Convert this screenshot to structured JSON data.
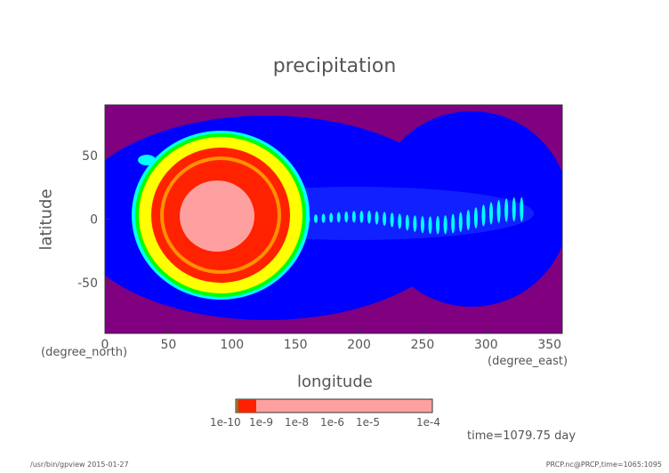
{
  "chart_data": {
    "type": "heatmap",
    "title": "precipitation",
    "xlabel": "longitude",
    "xunit": "(degree_east)",
    "ylabel": "latitude",
    "yunit": "(degree_north)",
    "xlim": [
      0,
      360
    ],
    "ylim": [
      -90,
      90
    ],
    "xticks": [
      0,
      50,
      100,
      150,
      200,
      250,
      300,
      350
    ],
    "yticks": [
      50,
      0,
      -50
    ],
    "description_levels": {
      "colorbar_labels": [
        "1e-10",
        "1e-9",
        "1e-8",
        "1e-6",
        "1e-5",
        "1e-4"
      ]
    },
    "colors": [
      "#800080",
      "#0000ff",
      "#00ffff",
      "#00ff00",
      "#ffff00",
      "#ff2200",
      "#ffa0a0"
    ],
    "time_label": "time=1079.75 day"
  },
  "footer": {
    "left": "/usr/bin/gpview  2015-01-27",
    "right": "PRCP.nc@PRCP,time=1065:1095"
  }
}
